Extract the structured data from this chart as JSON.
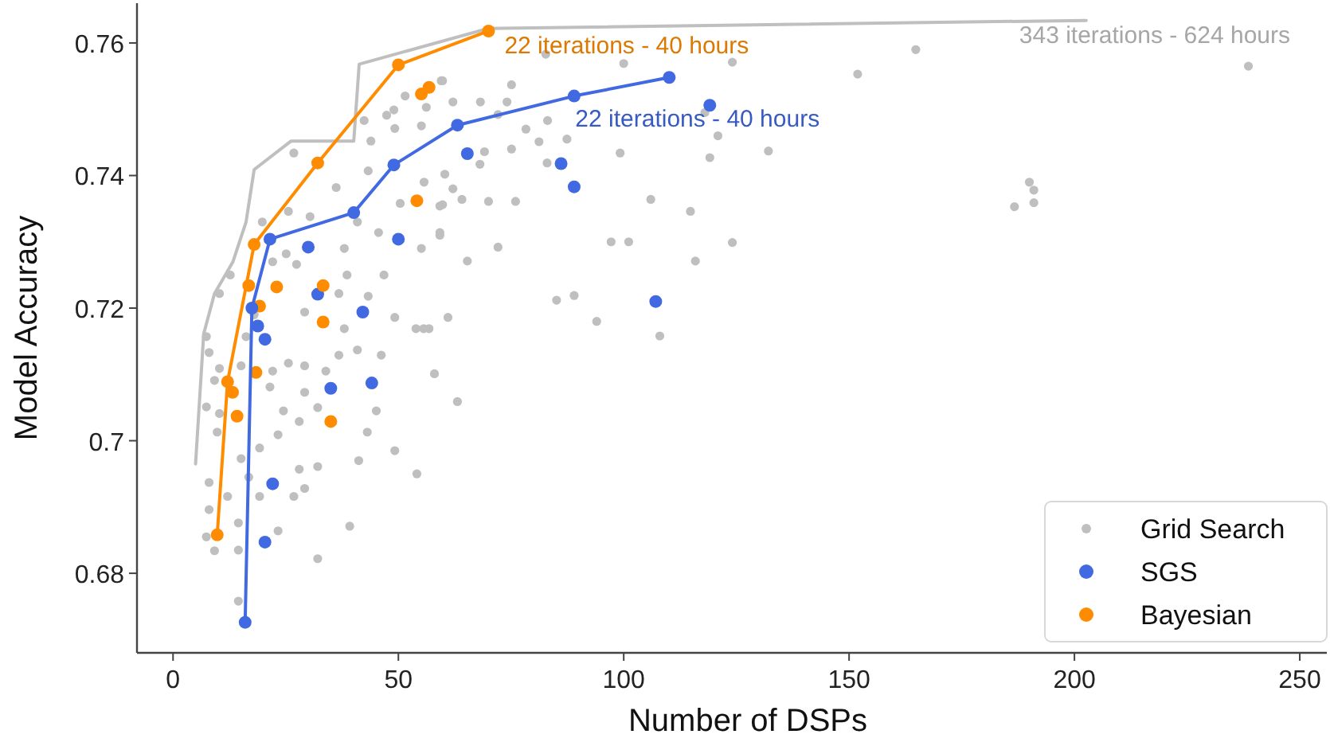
{
  "chart_data": {
    "type": "scatter",
    "xlabel": "Number of DSPs",
    "ylabel": "Model Accuracy",
    "xlim": [
      -8,
      256
    ],
    "ylim": [
      0.668,
      0.766
    ],
    "xticks": [
      0,
      50,
      100,
      150,
      200,
      250
    ],
    "yticks": [
      0.68,
      0.7,
      0.72,
      0.74,
      0.76
    ],
    "grid": false,
    "legend": "bottom right",
    "marker": "circle",
    "series": [
      {
        "name": "Grid Search",
        "color": "#bfbfbf",
        "x": [
          82.7,
          100,
          124.1,
          151.9,
          75.1,
          59.8,
          62.1,
          68.2,
          74.1,
          72.1,
          83.1,
          78.3,
          81.2,
          87.4,
          99.2,
          118,
          120.9,
          132.1,
          119.1,
          69.1,
          68.1,
          75.1,
          83,
          60.3,
          62.1,
          64.1,
          70,
          76,
          59.2,
          106,
          114.8,
          59.2,
          72.1,
          65.3,
          97.2,
          101.1,
          115.9,
          124.1,
          85.1,
          89,
          94,
          108,
          58,
          63.1,
          56.8,
          238.6,
          164.8,
          190,
          191,
          191,
          186.7,
          59.5,
          51.5,
          56.2,
          49,
          47.4,
          49.2,
          55.1,
          42.4,
          43.9,
          26.8,
          43.3,
          36.2,
          55.7,
          59.8,
          25.6,
          30.4,
          50.4,
          40.9,
          45.6,
          55.1,
          38,
          27.4,
          22.1,
          19.8,
          25.1,
          46.8,
          38.6,
          43.3,
          36.8,
          59.2,
          61,
          49.2,
          29.2,
          12.7,
          10.3,
          18,
          7.4,
          8,
          10.3,
          9.2,
          7.4,
          10.3,
          9.8,
          16.2,
          15.1,
          22.1,
          25.6,
          29.2,
          21.5,
          29.2,
          24.5,
          28,
          19.2,
          23.3,
          15.1,
          16.8,
          19.2,
          26.8,
          29.2,
          32.1,
          28,
          8,
          8,
          12.1,
          7.4,
          9.2,
          14.5,
          14.5,
          23.3,
          32.1,
          39.2,
          14.5,
          32.1,
          43.1,
          41.2,
          49.2,
          54.1,
          45.1,
          53.9,
          55.6,
          46.2,
          40.9,
          38,
          36.8,
          33.9
        ],
        "values": [
          0.7583,
          0.7569,
          0.7571,
          0.7553,
          0.7537,
          0.7543,
          0.7511,
          0.7511,
          0.7511,
          0.7492,
          0.7483,
          0.747,
          0.7451,
          0.7455,
          0.7434,
          0.7495,
          0.746,
          0.7437,
          0.7427,
          0.7436,
          0.7417,
          0.744,
          0.7419,
          0.7402,
          0.738,
          0.7364,
          0.7361,
          0.7361,
          0.7354,
          0.7364,
          0.7346,
          0.731,
          0.7292,
          0.7271,
          0.73,
          0.73,
          0.7271,
          0.7299,
          0.7212,
          0.7219,
          0.718,
          0.7158,
          0.7101,
          0.7059,
          0.7169,
          0.7565,
          0.759,
          0.739,
          0.7378,
          0.7359,
          0.7353,
          0.7543,
          0.752,
          0.7503,
          0.7499,
          0.7491,
          0.7471,
          0.7475,
          0.7483,
          0.7452,
          0.7434,
          0.7407,
          0.7382,
          0.739,
          0.7356,
          0.7346,
          0.7338,
          0.7358,
          0.733,
          0.7314,
          0.729,
          0.729,
          0.7266,
          0.727,
          0.733,
          0.7282,
          0.725,
          0.725,
          0.7218,
          0.7222,
          0.7314,
          0.7186,
          0.7186,
          0.7194,
          0.725,
          0.7222,
          0.719,
          0.7157,
          0.7133,
          0.7109,
          0.7091,
          0.7051,
          0.7041,
          0.7013,
          0.7157,
          0.7113,
          0.7105,
          0.7117,
          0.7113,
          0.7081,
          0.7073,
          0.7045,
          0.7029,
          0.6989,
          0.7009,
          0.6973,
          0.6945,
          0.6916,
          0.6916,
          0.6928,
          0.6961,
          0.6957,
          0.6937,
          0.6896,
          0.6916,
          0.6855,
          0.6834,
          0.6876,
          0.6835,
          0.6864,
          0.6822,
          0.6871,
          0.6758,
          0.705,
          0.7013,
          0.697,
          0.6985,
          0.695,
          0.7045,
          0.7169,
          0.7169,
          0.7129,
          0.7137,
          0.7169,
          0.7129,
          0.7105
        ]
      },
      {
        "name": "SGS",
        "color": "#4169e1",
        "x": [
          30,
          50,
          32.1,
          42.1,
          18.8,
          20.4,
          35,
          44.1,
          22.1,
          20.4,
          65.3,
          86.1,
          89,
          119.1,
          107.1
        ],
        "values": [
          0.7292,
          0.7304,
          0.7221,
          0.7194,
          0.7173,
          0.7153,
          0.7079,
          0.7087,
          0.6935,
          0.6847,
          0.7433,
          0.7418,
          0.7383,
          0.7506,
          0.721
        ]
      },
      {
        "name": "Bayesian",
        "color": "#ff8c00",
        "x": [
          55.1,
          56.8,
          54.1,
          23,
          33.3,
          33.3,
          19.2,
          18.4,
          35,
          14.2,
          13.2,
          16.8
        ],
        "values": [
          0.7523,
          0.7533,
          0.7362,
          0.7232,
          0.7234,
          0.7179,
          0.7203,
          0.7103,
          0.7029,
          0.7037,
          0.7073,
          0.7234
        ]
      },
      {
        "color": "#bfbfbf",
        "type": "line",
        "marker": "none",
        "x": [
          5,
          6.8,
          9.2,
          13.3,
          16.2,
          18,
          26.2,
          40.1,
          41.3,
          70,
          202.6
        ],
        "values": [
          0.6965,
          0.7161,
          0.7222,
          0.727,
          0.733,
          0.7409,
          0.7452,
          0.7452,
          0.7568,
          0.7622,
          0.7634
        ]
      },
      {
        "color": "#4169e1",
        "type": "line",
        "x": [
          16,
          17.5,
          21.5,
          40.1,
          49,
          63.1,
          89,
          110.1
        ],
        "values": [
          0.6726,
          0.72,
          0.7304,
          0.7344,
          0.7416,
          0.7476,
          0.752,
          0.7548
        ]
      },
      {
        "color": "#ff8c00",
        "type": "line",
        "x": [
          9.8,
          12.1,
          18,
          32.1,
          50,
          70
        ],
        "values": [
          0.6858,
          0.7089,
          0.7296,
          0.7419,
          0.7567,
          0.7618
        ]
      }
    ],
    "annotations": [
      {
        "text": "22 iterations - 40 hours",
        "x": 70,
        "y": 0.7618
      },
      {
        "text": "22 iterations - 40 hours",
        "x": 110.1,
        "y": 0.7548
      },
      {
        "text": "343 iterations - 624 hours",
        "x": 202.6,
        "y": 0.7634
      }
    ]
  }
}
